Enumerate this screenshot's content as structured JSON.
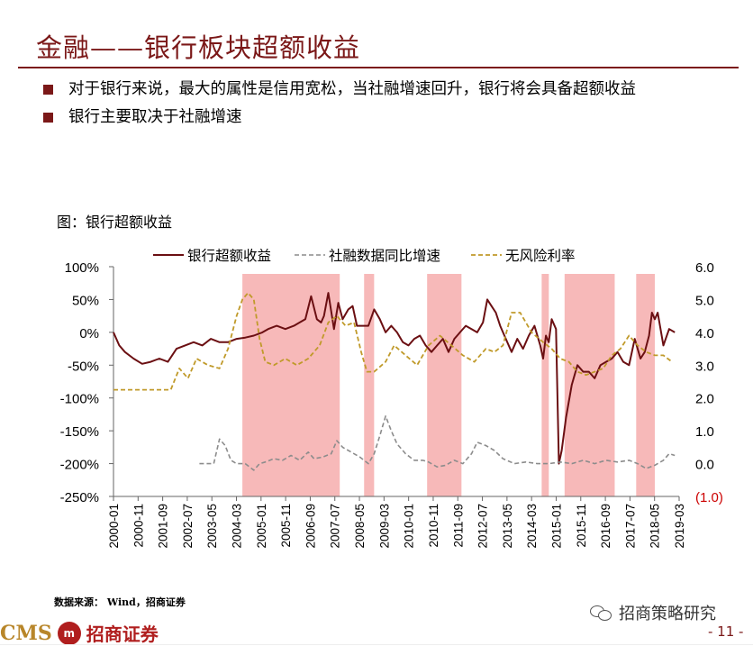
{
  "title": "金融——银行板块超额收益",
  "bullets": [
    "对于银行来说，最大的属性是信用宽松，当社融增速回升，银行将会具备超额收益",
    "银行主要取决于社融增速"
  ],
  "chart_caption": "图：银行超额收益",
  "source": "数据来源： Wind，招商证券",
  "wechat_label": "招商策略研究",
  "logo_text": "CMS",
  "logo_badge": "m",
  "logo_cn": "招商证券",
  "page_number": "- 11 -",
  "colors": {
    "accent": "#7b1818",
    "bank": "#6b0f12",
    "tsf": "#8c8c8c",
    "rf": "#c09a2a",
    "shade": "#f7b9b9",
    "neg_label": "#cc0000"
  },
  "chart_data": {
    "type": "line",
    "legend_position": "top",
    "grid": false,
    "x_range": [
      2000.0,
      2019.75
    ],
    "x_ticks": [
      "2000-01",
      "2000-11",
      "2001-09",
      "2002-07",
      "2003-05",
      "2004-03",
      "2005-01",
      "2005-11",
      "2006-09",
      "2007-07",
      "2008-05",
      "2009-03",
      "2010-01",
      "2010-11",
      "2011-09",
      "2012-07",
      "2013-05",
      "2014-03",
      "2015-01",
      "2015-11",
      "2016-09",
      "2017-07",
      "2018-05",
      "2019-03"
    ],
    "left_axis": {
      "range": [
        -250,
        100
      ],
      "ticks": [
        "100%",
        "50%",
        "0%",
        "-50%",
        "-100%",
        "-150%",
        "-200%",
        "-250%"
      ]
    },
    "right_axis": {
      "range": [
        -1.0,
        6.0
      ],
      "ticks": [
        "6.0",
        "5.0",
        "4.0",
        "3.0",
        "2.0",
        "1.0",
        "0.0",
        "(1.0)"
      ]
    },
    "shaded_periods": [
      [
        2004.5,
        2007.9
      ],
      [
        2008.75,
        2009.1
      ],
      [
        2010.95,
        2012.15
      ],
      [
        2014.95,
        2015.2
      ],
      [
        2015.75,
        2017.5
      ],
      [
        2018.25,
        2018.9
      ]
    ],
    "series": [
      {
        "name": "银行超额收益",
        "axis": "left",
        "x": [
          2000.0,
          2000.2,
          2000.4,
          2000.7,
          2001.0,
          2001.3,
          2001.6,
          2001.9,
          2002.2,
          2002.5,
          2002.8,
          2003.1,
          2003.4,
          2003.7,
          2004.0,
          2004.3,
          2004.6,
          2004.9,
          2005.2,
          2005.4,
          2005.7,
          2006.0,
          2006.3,
          2006.5,
          2006.7,
          2006.9,
          2007.1,
          2007.25,
          2007.35,
          2007.5,
          2007.7,
          2007.85,
          2008.0,
          2008.2,
          2008.35,
          2008.5,
          2008.7,
          2008.9,
          2009.1,
          2009.3,
          2009.5,
          2009.7,
          2009.9,
          2010.1,
          2010.3,
          2010.5,
          2010.7,
          2010.9,
          2011.1,
          2011.3,
          2011.5,
          2011.7,
          2011.9,
          2012.1,
          2012.3,
          2012.5,
          2012.7,
          2012.9,
          2013.05,
          2013.2,
          2013.35,
          2013.5,
          2013.7,
          2013.9,
          2014.1,
          2014.3,
          2014.5,
          2014.7,
          2014.9,
          2015.0,
          2015.1,
          2015.2,
          2015.3,
          2015.45,
          2015.55,
          2015.65,
          2015.8,
          2016.0,
          2016.2,
          2016.4,
          2016.6,
          2016.8,
          2017.0,
          2017.2,
          2017.4,
          2017.6,
          2017.8,
          2018.0,
          2018.2,
          2018.4,
          2018.55,
          2018.7,
          2018.8,
          2018.9,
          2019.0,
          2019.2,
          2019.4,
          2019.6
        ],
        "values": [
          0,
          -20,
          -30,
          -40,
          -48,
          -45,
          -40,
          -45,
          -25,
          -20,
          -15,
          -20,
          -10,
          -15,
          -15,
          -10,
          -8,
          -5,
          0,
          5,
          10,
          5,
          10,
          15,
          20,
          55,
          20,
          15,
          25,
          60,
          5,
          45,
          20,
          35,
          40,
          10,
          10,
          10,
          35,
          20,
          0,
          10,
          0,
          -15,
          -20,
          -10,
          -5,
          -20,
          -30,
          -20,
          -10,
          -30,
          -10,
          0,
          10,
          5,
          0,
          15,
          50,
          40,
          30,
          10,
          -10,
          -30,
          -10,
          -25,
          -5,
          10,
          -20,
          -40,
          -5,
          -15,
          20,
          5,
          -200,
          -180,
          -130,
          -80,
          -50,
          -60,
          -60,
          -70,
          -50,
          -45,
          -40,
          -30,
          -45,
          -50,
          -10,
          -40,
          -30,
          -5,
          30,
          20,
          30,
          -20,
          5,
          0
        ]
      },
      {
        "name": "社融数据同比增速",
        "axis": "right",
        "x": [
          2003.0,
          2003.5,
          2003.7,
          2003.9,
          2004.1,
          2004.3,
          2004.6,
          2004.9,
          2005.1,
          2005.3,
          2005.6,
          2005.9,
          2006.2,
          2006.5,
          2006.8,
          2007.0,
          2007.3,
          2007.6,
          2007.8,
          2008.0,
          2008.3,
          2008.6,
          2008.9,
          2009.1,
          2009.3,
          2009.5,
          2009.7,
          2009.9,
          2010.2,
          2010.5,
          2010.8,
          2011.0,
          2011.3,
          2011.6,
          2011.9,
          2012.2,
          2012.5,
          2012.7,
          2013.0,
          2013.3,
          2013.6,
          2014.0,
          2014.4,
          2014.8,
          2015.2,
          2015.6,
          2016.0,
          2016.4,
          2016.8,
          2017.2,
          2017.6,
          2018.0,
          2018.3,
          2018.6,
          2018.9,
          2019.2,
          2019.4,
          2019.6
        ],
        "values": [
          0.0,
          0.0,
          0.75,
          0.55,
          0.1,
          0.0,
          0.0,
          -0.2,
          0.0,
          0.05,
          0.15,
          0.1,
          0.25,
          0.1,
          0.35,
          0.15,
          0.2,
          0.3,
          0.7,
          0.5,
          0.35,
          0.2,
          0.0,
          0.3,
          0.85,
          1.45,
          1.0,
          0.6,
          0.3,
          0.1,
          0.1,
          0.05,
          -0.1,
          -0.05,
          0.1,
          0.0,
          0.3,
          0.65,
          0.55,
          0.4,
          0.15,
          0.0,
          0.05,
          0.0,
          0.0,
          0.05,
          0.0,
          0.1,
          0.0,
          0.1,
          0.05,
          0.1,
          0.0,
          -0.15,
          -0.05,
          0.1,
          0.3,
          0.25
        ]
      },
      {
        "name": "无风险利率",
        "axis": "right",
        "x": [
          2000.0,
          2001.2,
          2002.0,
          2002.3,
          2002.6,
          2002.9,
          2003.3,
          2003.7,
          2004.0,
          2004.3,
          2004.5,
          2004.7,
          2004.9,
          2005.1,
          2005.3,
          2005.6,
          2006.0,
          2006.4,
          2006.8,
          2007.2,
          2007.5,
          2007.8,
          2008.1,
          2008.4,
          2008.65,
          2008.85,
          2009.1,
          2009.5,
          2009.8,
          2010.2,
          2010.6,
          2011.0,
          2011.4,
          2011.8,
          2012.2,
          2012.6,
          2013.0,
          2013.3,
          2013.6,
          2013.9,
          2014.2,
          2014.6,
          2015.0,
          2015.3,
          2015.6,
          2015.9,
          2016.2,
          2016.5,
          2016.8,
          2017.1,
          2017.4,
          2017.7,
          2018.0,
          2018.3,
          2018.6,
          2018.9,
          2019.2,
          2019.5
        ],
        "values": [
          2.25,
          2.25,
          2.25,
          2.9,
          2.6,
          3.2,
          3.0,
          2.9,
          3.5,
          4.5,
          5.0,
          5.2,
          5.0,
          3.8,
          3.1,
          3.0,
          3.2,
          3.0,
          3.2,
          3.6,
          4.3,
          4.5,
          4.2,
          4.3,
          3.4,
          2.8,
          2.8,
          3.1,
          3.6,
          3.3,
          3.0,
          3.6,
          3.9,
          3.6,
          3.3,
          3.1,
          3.5,
          3.4,
          3.6,
          4.6,
          4.6,
          4.0,
          3.7,
          3.5,
          3.2,
          3.1,
          2.8,
          2.7,
          2.8,
          2.9,
          3.3,
          3.5,
          3.9,
          3.6,
          3.4,
          3.3,
          3.3,
          3.1
        ]
      }
    ]
  }
}
